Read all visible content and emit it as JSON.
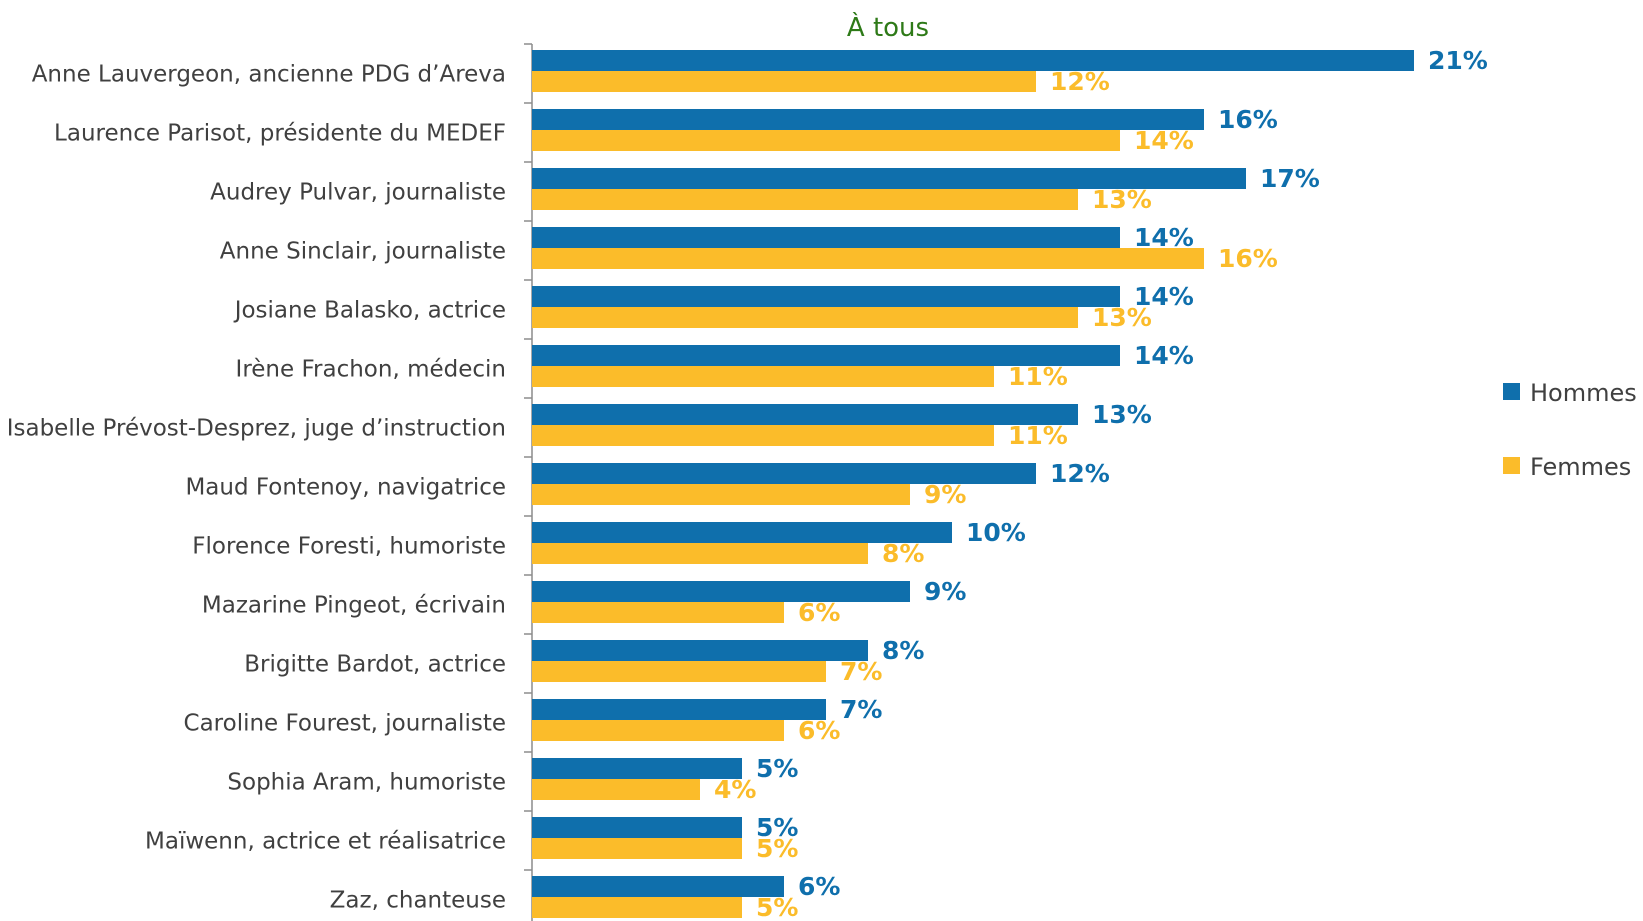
{
  "chart_data": {
    "type": "bar",
    "orientation": "horizontal",
    "title": "À tous",
    "title_color": "#2e7a18",
    "categories": [
      "Anne Lauvergeon, ancienne PDG d’Areva",
      "Laurence Parisot, présidente du MEDEF",
      "Audrey Pulvar, journaliste",
      "Anne Sinclair, journaliste",
      "Josiane Balasko, actrice",
      "Irène Frachon, médecin",
      "Isabelle Prévost-Desprez, juge d’instruction",
      "Maud Fontenoy, navigatrice",
      "Florence Foresti, humoriste",
      "Mazarine Pingeot, écrivain",
      "Brigitte Bardot, actrice",
      "Caroline Fourest, journaliste",
      "Sophia Aram, humoriste",
      "Maïwenn, actrice et réalisatrice",
      "Zaz, chanteuse"
    ],
    "series": [
      {
        "name": "Hommes",
        "color": "#0f6fac",
        "values": [
          21,
          16,
          17,
          14,
          14,
          14,
          13,
          12,
          10,
          9,
          8,
          7,
          5,
          5,
          6
        ],
        "labels": [
          "21%",
          "16%",
          "17%",
          "14%",
          "14%",
          "14%",
          "13%",
          "12%",
          "10%",
          "9%",
          "8%",
          "7%",
          "5%",
          "5%",
          "6%"
        ]
      },
      {
        "name": "Femmes",
        "color": "#fbbc2a",
        "values": [
          12,
          14,
          13,
          16,
          13,
          11,
          11,
          9,
          8,
          6,
          7,
          6,
          4,
          5,
          5
        ],
        "labels": [
          "12%",
          "14%",
          "13%",
          "16%",
          "13%",
          "11%",
          "11%",
          "9%",
          "8%",
          "6%",
          "7%",
          "6%",
          "4%",
          "5%",
          "5%"
        ]
      }
    ],
    "xlim": [
      0,
      21
    ],
    "grid": false,
    "legend_position": "right"
  }
}
